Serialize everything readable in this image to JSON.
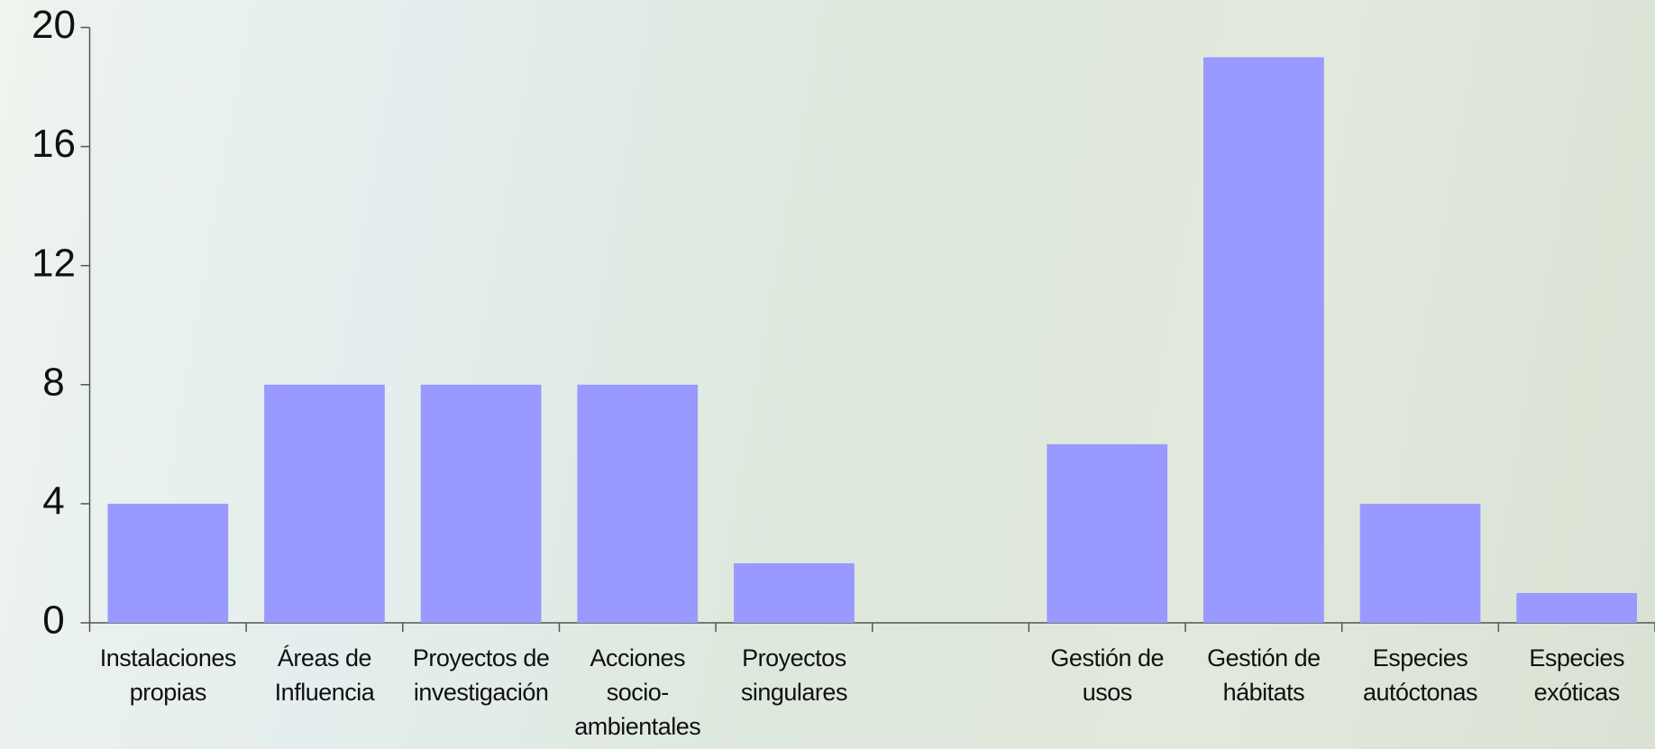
{
  "chart_data": {
    "type": "bar",
    "categories": [
      "Instalaciones\npropias",
      "Áreas de\nInfluencia",
      "Proyectos de\ninvestigación",
      "Acciones\nsocio-\nambientales",
      "Proyectos\nsingulares",
      null,
      "Gestión de\nusos",
      "Gestión de\nhábitats",
      "Especies\nautóctonas",
      "Especies\nexóticas"
    ],
    "values": [
      4,
      8,
      8,
      8,
      2,
      null,
      6,
      19,
      4,
      1
    ],
    "color": "#9999ff",
    "ylim": [
      0,
      20
    ],
    "yticks": [
      0,
      4,
      8,
      12,
      16,
      20
    ],
    "grid": false
  }
}
